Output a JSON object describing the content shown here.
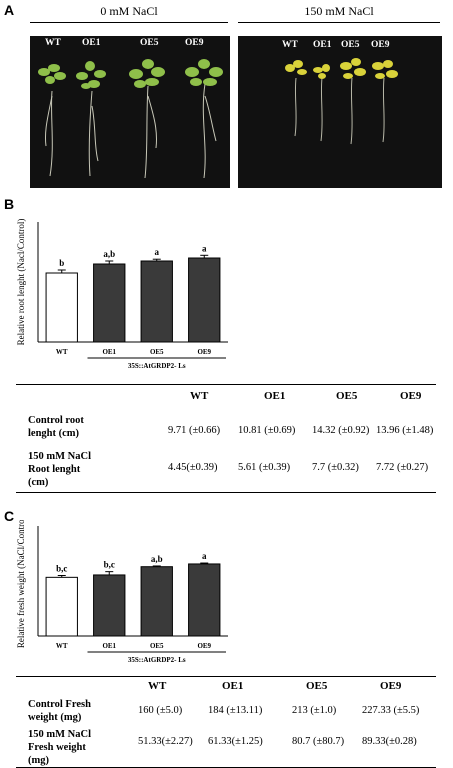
{
  "panelA": {
    "letter": "A",
    "left": {
      "title": "0 mM NaCl",
      "labels": [
        "WT",
        "OE1",
        "OE5",
        "OE9"
      ]
    },
    "right": {
      "title": "150 mM NaCl",
      "labels": [
        "WT",
        "OE1",
        "OE5",
        "OE9"
      ]
    }
  },
  "panelB": {
    "letter": "B",
    "table": {
      "headers": [
        "WT",
        "OE1",
        "OE5",
        "OE9"
      ],
      "rows": [
        {
          "label_lines": [
            "Control root",
            "lenght (cm)"
          ],
          "values": [
            "9.71 (±0.66)",
            "10.81 (±0.69)",
            "14.32 (±0.92)",
            "13.96 (±1.48)"
          ]
        },
        {
          "label_lines": [
            "150 mM NaCl",
            "Root lenght",
            "(cm)"
          ],
          "values": [
            "4.45(±0.39)",
            "5.61 (±0.39)",
            "7.7 (±0.32)",
            "7.72 (±0.27)"
          ]
        }
      ]
    }
  },
  "panelC": {
    "letter": "C",
    "table": {
      "headers": [
        "WT",
        "OE1",
        "OE5",
        "OE9"
      ],
      "rows": [
        {
          "label_lines": [
            "Control Fresh",
            "weight (mg)"
          ],
          "values": [
            "160 (±5.0)",
            "184 (±13.11)",
            "213 (±1.0)",
            "227.33 (±5.5)"
          ]
        },
        {
          "label_lines": [
            "150 mM NaCl",
            "Fresh weight",
            "(mg)"
          ],
          "values": [
            "51.33(±2.27)",
            "61.33(±1.25)",
            "80.7 (±80.7)",
            "89.33(±0.28)"
          ]
        }
      ]
    }
  },
  "chart_data": [
    {
      "type": "bar",
      "categories": [
        "WT",
        "OE1",
        "OE5",
        "OE9"
      ],
      "values": [
        0.46,
        0.52,
        0.54,
        0.56
      ],
      "errors": [
        0.02,
        0.02,
        0.012,
        0.018
      ],
      "letters": [
        "b",
        "a,b",
        "a",
        "a"
      ],
      "colors": [
        "#ffffff",
        "#3a3a3a",
        "#3a3a3a",
        "#3a3a3a"
      ],
      "ylabel": "Relative root lenght (Nacl/Control)",
      "group_label": "35S::AtGRDP2- Ls",
      "ylim": [
        0,
        0.8
      ],
      "yticks": [],
      "grid": false
    },
    {
      "type": "bar",
      "categories": [
        "WT",
        "OE1",
        "OE5",
        "OE9"
      ],
      "values": [
        0.32,
        0.333,
        0.378,
        0.393
      ],
      "errors": [
        0.01,
        0.018,
        0.004,
        0.005
      ],
      "letters": [
        "b,c",
        "b,c",
        "a,b",
        "a"
      ],
      "colors": [
        "#ffffff",
        "#3a3a3a",
        "#3a3a3a",
        "#3a3a3a"
      ],
      "ylabel": "Relative fresh weight (NaCl/Control)",
      "group_label": "35S::AtGRDP2- Ls",
      "ylim": [
        0,
        0.6
      ],
      "yticks": [],
      "grid": false
    }
  ]
}
